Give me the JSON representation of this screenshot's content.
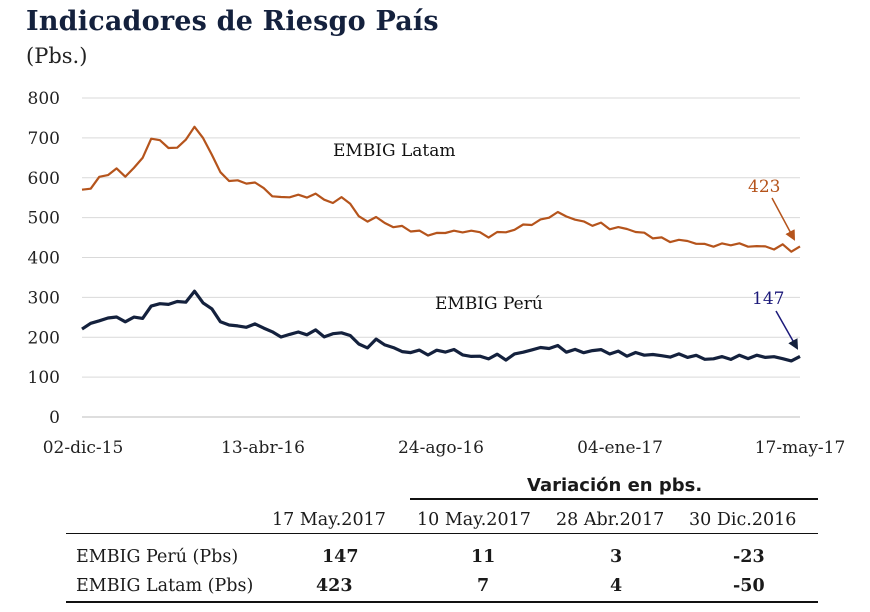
{
  "title": "Indicadores de Riesgo País",
  "subtitle": "(Pbs.)",
  "chart_data": {
    "type": "line",
    "y_ticks": [
      "800",
      "700",
      "600",
      "500",
      "400",
      "300",
      "200",
      "100",
      "0"
    ],
    "ylim": [
      0,
      800
    ],
    "x_ticks": [
      "02-dic-15",
      "13-abr-16",
      "24-ago-16",
      "04-ene-17",
      "17-may-17"
    ],
    "grid": true,
    "series": [
      {
        "name": "EMBIG Latam",
        "color": "#b5541c",
        "end_label": "423",
        "values": [
          570,
          575,
          598,
          612,
          618,
          607,
          622,
          650,
          700,
          690,
          680,
          670,
          700,
          725,
          700,
          660,
          610,
          597,
          588,
          590,
          585,
          575,
          555,
          548,
          556,
          552,
          555,
          557,
          546,
          538,
          548,
          540,
          498,
          495,
          498,
          488,
          477,
          476,
          470,
          462,
          460,
          458,
          463,
          468,
          460,
          472,
          458,
          455,
          460,
          465,
          470,
          480,
          486,
          490,
          505,
          510,
          505,
          495,
          488,
          484,
          482,
          476,
          472,
          474,
          464,
          460,
          452,
          445,
          444,
          440,
          444,
          434,
          432,
          431,
          430,
          436,
          431,
          430,
          428,
          426,
          424,
          428,
          420,
          423
        ]
      },
      {
        "name": "EMBIG Perú",
        "color": "#14213d",
        "end_label": "147",
        "values": [
          225,
          232,
          242,
          250,
          247,
          244,
          245,
          252,
          275,
          285,
          284,
          286,
          293,
          310,
          291,
          268,
          240,
          232,
          225,
          230,
          228,
          228,
          210,
          202,
          208,
          210,
          211,
          213,
          206,
          205,
          213,
          205,
          180,
          178,
          190,
          186,
          170,
          166,
          162,
          165,
          160,
          162,
          168,
          165,
          158,
          152,
          150,
          150,
          152,
          148,
          154,
          165,
          168,
          172,
          176,
          174,
          168,
          165,
          164,
          166,
          167,
          162,
          160,
          158,
          157,
          158,
          156,
          152,
          154,
          153,
          155,
          150,
          148,
          145,
          150,
          148,
          150,
          152,
          150,
          153,
          150,
          145,
          144,
          147
        ]
      }
    ]
  },
  "table": {
    "group_header": "Variación en pbs.",
    "columns": [
      "17 May.2017",
      "10 May.2017",
      "28 Abr.2017",
      "30 Dic.2016"
    ],
    "rows": [
      {
        "label": "EMBIG Perú (Pbs)",
        "values": [
          "147",
          "11",
          "3",
          "-23"
        ]
      },
      {
        "label": "EMBIG Latam (Pbs)",
        "values": [
          "423",
          "7",
          "4",
          "-50"
        ]
      }
    ]
  }
}
